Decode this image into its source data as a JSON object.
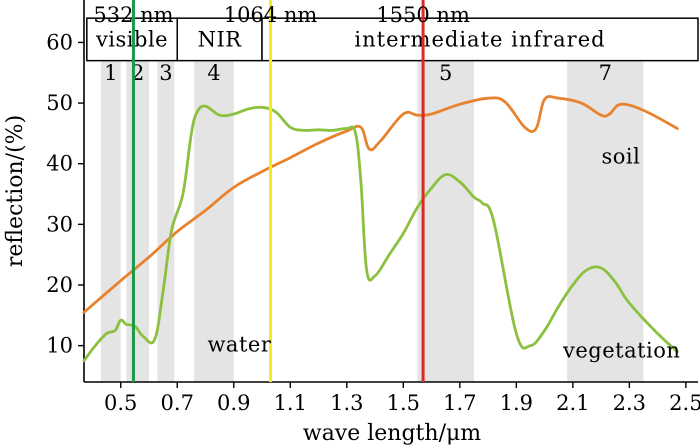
{
  "chart_data": {
    "type": "line",
    "title": "",
    "xlabel": "wave length/μm",
    "ylabel": "reflection/(%)",
    "xlim": [
      0.37,
      2.55
    ],
    "ylim": [
      4,
      67
    ],
    "x_ticks": [
      0.5,
      0.7,
      0.9,
      1.1,
      1.3,
      1.5,
      1.7,
      1.9,
      2.1,
      2.3,
      2.5
    ],
    "x_tick_labels": [
      "0.5",
      "0.7",
      "0.9",
      "1.1",
      "1.3",
      "1.5",
      "1.7",
      "1.9",
      "2.1",
      "2.3",
      "2.5"
    ],
    "y_ticks": [
      10,
      20,
      30,
      40,
      50,
      60
    ],
    "y_tick_labels": [
      "10",
      "20",
      "30",
      "40",
      "50",
      "60"
    ],
    "bands": [
      {
        "label": "1",
        "x0": 0.43,
        "x1": 0.5
      },
      {
        "label": "2",
        "x0": 0.52,
        "x1": 0.6
      },
      {
        "label": "3",
        "x0": 0.63,
        "x1": 0.69
      },
      {
        "label": "4",
        "x0": 0.76,
        "x1": 0.9
      },
      {
        "label": "5",
        "x0": 1.55,
        "x1": 1.75
      },
      {
        "label": "7",
        "x0": 2.08,
        "x1": 2.35
      }
    ],
    "regions": [
      {
        "label": "visible",
        "x0": 0.38,
        "x1": 0.7
      },
      {
        "label": "NIR",
        "x0": 0.7,
        "x1": 1.0
      },
      {
        "label": "intermediate infrared",
        "x0": 1.0,
        "x1": 2.55
      }
    ],
    "region_box_y": [
      57,
      64
    ],
    "laser_lines": [
      {
        "label": "532 nm",
        "x": 0.545,
        "color": "#1a9a47"
      },
      {
        "label": "1064 nm",
        "x": 1.03,
        "color": "#f4ee1a"
      },
      {
        "label": "1550 nm",
        "x": 1.57,
        "color": "#dc2b24"
      }
    ],
    "series": [
      {
        "name": "soil",
        "color": "#e8822d",
        "x": [
          0.37,
          0.5,
          0.6,
          0.7,
          0.8,
          0.9,
          1.0,
          1.1,
          1.2,
          1.3,
          1.35,
          1.38,
          1.42,
          1.5,
          1.55,
          1.6,
          1.7,
          1.8,
          1.86,
          1.93,
          1.97,
          2.0,
          2.05,
          2.13,
          2.2,
          2.23,
          2.27,
          2.35,
          2.47
        ],
        "values": [
          15.5,
          20.7,
          24.6,
          28.8,
          32.3,
          36.1,
          38.7,
          41.0,
          43.4,
          45.4,
          46.0,
          42.4,
          43.8,
          48.2,
          48.0,
          48.2,
          49.8,
          50.8,
          50.2,
          46.0,
          45.8,
          50.6,
          50.8,
          50.0,
          48.0,
          48.2,
          49.8,
          48.8,
          45.8
        ]
      },
      {
        "name": "vegetation",
        "color": "#8cc13f",
        "x": [
          0.37,
          0.41,
          0.45,
          0.48,
          0.5,
          0.52,
          0.55,
          0.58,
          0.62,
          0.65,
          0.68,
          0.72,
          0.75,
          0.77,
          0.8,
          0.85,
          0.9,
          0.95,
          1.0,
          1.05,
          1.1,
          1.15,
          1.2,
          1.25,
          1.3,
          1.33,
          1.35,
          1.37,
          1.4,
          1.45,
          1.5,
          1.55,
          1.6,
          1.65,
          1.7,
          1.75,
          1.78,
          1.82,
          1.9,
          1.95,
          2.0,
          2.05,
          2.1,
          2.15,
          2.2,
          2.25,
          2.3,
          2.4,
          2.47
        ],
        "values": [
          7.5,
          10.0,
          12.0,
          12.5,
          14.2,
          13.5,
          13.2,
          11.5,
          11.0,
          19.0,
          29.0,
          35.0,
          45.0,
          48.5,
          49.5,
          48.0,
          48.2,
          49.0,
          49.3,
          48.5,
          46.0,
          45.5,
          45.6,
          45.5,
          45.8,
          45.2,
          37.0,
          22.5,
          21.5,
          25.0,
          28.5,
          32.8,
          36.0,
          38.2,
          37.0,
          34.5,
          33.5,
          30.5,
          12.0,
          10.0,
          12.5,
          16.5,
          20.0,
          22.5,
          22.8,
          20.5,
          17.0,
          12.0,
          9.0
        ]
      }
    ],
    "annotations": [
      {
        "text": "water",
        "x": 0.92,
        "y": 9
      },
      {
        "text": "soil",
        "x": 2.27,
        "y": 40
      },
      {
        "text": "vegetation",
        "x": 2.25,
        "y": 8
      }
    ]
  }
}
